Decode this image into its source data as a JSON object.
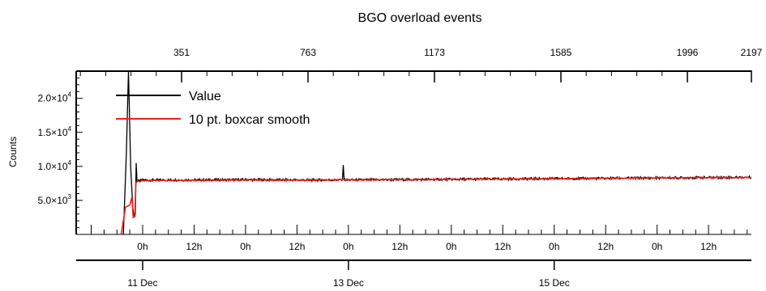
{
  "chart_data": {
    "type": "line",
    "title": "BGO overload events",
    "ylabel": "Counts",
    "ylim": [
      0,
      24000
    ],
    "y_ticks": [
      {
        "value": 5000,
        "mantissa": "5.0×10",
        "exp": "3"
      },
      {
        "value": 10000,
        "mantissa": "1.0×10",
        "exp": "4"
      },
      {
        "value": 15000,
        "mantissa": "1.5×10",
        "exp": "4"
      },
      {
        "value": 20000,
        "mantissa": "2.0×10",
        "exp": "4"
      }
    ],
    "top_axis": {
      "ticks": [
        351,
        763,
        1173,
        1585,
        1996,
        2197
      ]
    },
    "time_axis": {
      "start_hour": -15.5,
      "end_hour": 142,
      "hour_labels": [
        {
          "hour": 0,
          "label": "0h"
        },
        {
          "hour": 12,
          "label": "12h"
        },
        {
          "hour": 24,
          "label": "0h"
        },
        {
          "hour": 36,
          "label": "12h"
        },
        {
          "hour": 48,
          "label": "0h"
        },
        {
          "hour": 60,
          "label": "12h"
        },
        {
          "hour": 72,
          "label": "0h"
        },
        {
          "hour": 84,
          "label": "12h"
        },
        {
          "hour": 96,
          "label": "0h"
        },
        {
          "hour": 108,
          "label": "12h"
        },
        {
          "hour": 120,
          "label": "0h"
        },
        {
          "hour": 132,
          "label": "12h"
        }
      ],
      "date_labels": [
        {
          "hour": 0,
          "label": "11 Dec"
        },
        {
          "hour": 48,
          "label": "13 Dec"
        },
        {
          "hour": 96,
          "label": "15 Dec"
        }
      ]
    },
    "series": [
      {
        "name": "Value",
        "color": "#000000",
        "points": [
          [
            -4.5,
            0
          ],
          [
            -3.8,
            12000
          ],
          [
            -3.3,
            24000
          ],
          [
            -2.8,
            10000
          ],
          [
            -2.3,
            4000
          ],
          [
            -2.0,
            2800
          ],
          [
            -1.7,
            3000
          ],
          [
            -1.5,
            10500
          ],
          [
            -1.3,
            7800
          ],
          [
            0,
            8000
          ],
          [
            12,
            8000
          ],
          [
            24,
            8050
          ],
          [
            36,
            8000
          ],
          [
            46.6,
            8000
          ],
          [
            46.8,
            10200
          ],
          [
            47,
            8000
          ],
          [
            60,
            8050
          ],
          [
            72,
            8100
          ],
          [
            84,
            8150
          ],
          [
            96,
            8200
          ],
          [
            108,
            8250
          ],
          [
            120,
            8300
          ],
          [
            132,
            8350
          ],
          [
            142,
            8400
          ]
        ]
      },
      {
        "name": "10 pt. boxcar smooth",
        "color": "#e8201c",
        "points": [
          [
            -5.0,
            0
          ],
          [
            -4.0,
            4000
          ],
          [
            -3.0,
            4300
          ],
          [
            -2.5,
            5500
          ],
          [
            -2.2,
            2500
          ],
          [
            -1.8,
            2600
          ],
          [
            -1.6,
            7600
          ],
          [
            -1.2,
            7800
          ],
          [
            0,
            7900
          ],
          [
            12,
            7950
          ],
          [
            24,
            8000
          ],
          [
            36,
            7980
          ],
          [
            48,
            8020
          ],
          [
            60,
            8050
          ],
          [
            72,
            8100
          ],
          [
            84,
            8150
          ],
          [
            96,
            8200
          ],
          [
            108,
            8250
          ],
          [
            120,
            8300
          ],
          [
            132,
            8350
          ],
          [
            142,
            8380
          ]
        ]
      }
    ],
    "legend_position": "top-left"
  }
}
